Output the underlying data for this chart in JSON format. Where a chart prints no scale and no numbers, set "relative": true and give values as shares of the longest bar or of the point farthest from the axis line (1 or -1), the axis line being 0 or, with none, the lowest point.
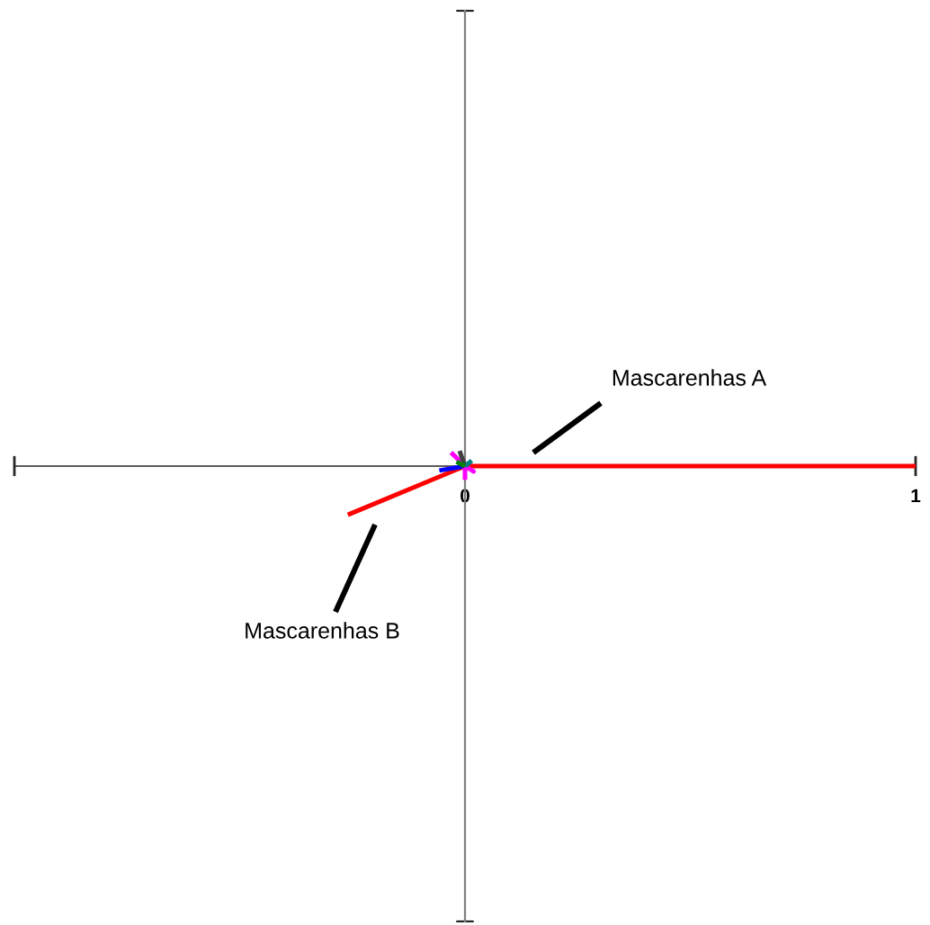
{
  "chart_data": {
    "type": "line",
    "relative": true,
    "series": [
      {
        "color": "#ff0000",
        "x": [
          -0.26,
          0,
          1
        ],
        "values": [
          -1,
          0,
          0
        ]
      },
      {
        "color": "#0000ff",
        "x": [
          -0.057,
          0
        ],
        "values": [
          -0.09,
          0
        ]
      },
      {
        "color": "#ff00ff",
        "x": [
          -0.031,
          0,
          0.019,
          0,
          0
        ],
        "values": [
          0.28,
          0,
          -0.11,
          0,
          -0.28
        ]
      },
      {
        "color": "#404040",
        "x": [
          0,
          -0.012
        ],
        "values": [
          0,
          0.31
        ]
      },
      {
        "color": "#008080",
        "x": [
          0,
          0.015
        ],
        "values": [
          0,
          0.11
        ]
      },
      {
        "color": "#008000",
        "x": [
          0,
          -0.019
        ],
        "values": [
          0,
          0.09
        ]
      }
    ],
    "annotations": [
      "Mascarenhas A",
      "Mascarenhas B"
    ],
    "xlim": [
      -1,
      1
    ],
    "xticks": [
      0,
      1
    ],
    "tick_labels": "x"
  }
}
